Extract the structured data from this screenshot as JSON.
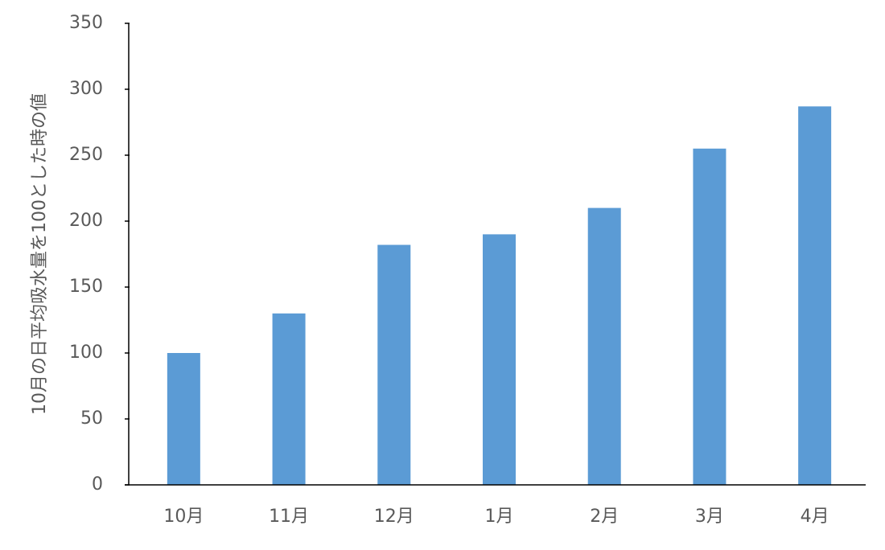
{
  "chart_data": {
    "type": "bar",
    "y_label": "10月の日平均吸水量を100とした時の値",
    "categories": [
      "10月",
      "11月",
      "12月",
      "1月",
      "2月",
      "3月",
      "4月"
    ],
    "values": [
      100,
      130,
      182,
      190,
      210,
      255,
      287
    ],
    "color": "#5b9bd5",
    "ylim": [
      0,
      350
    ],
    "yticks": [
      0,
      50,
      100,
      150,
      200,
      250,
      300,
      350
    ],
    "grid": false
  }
}
